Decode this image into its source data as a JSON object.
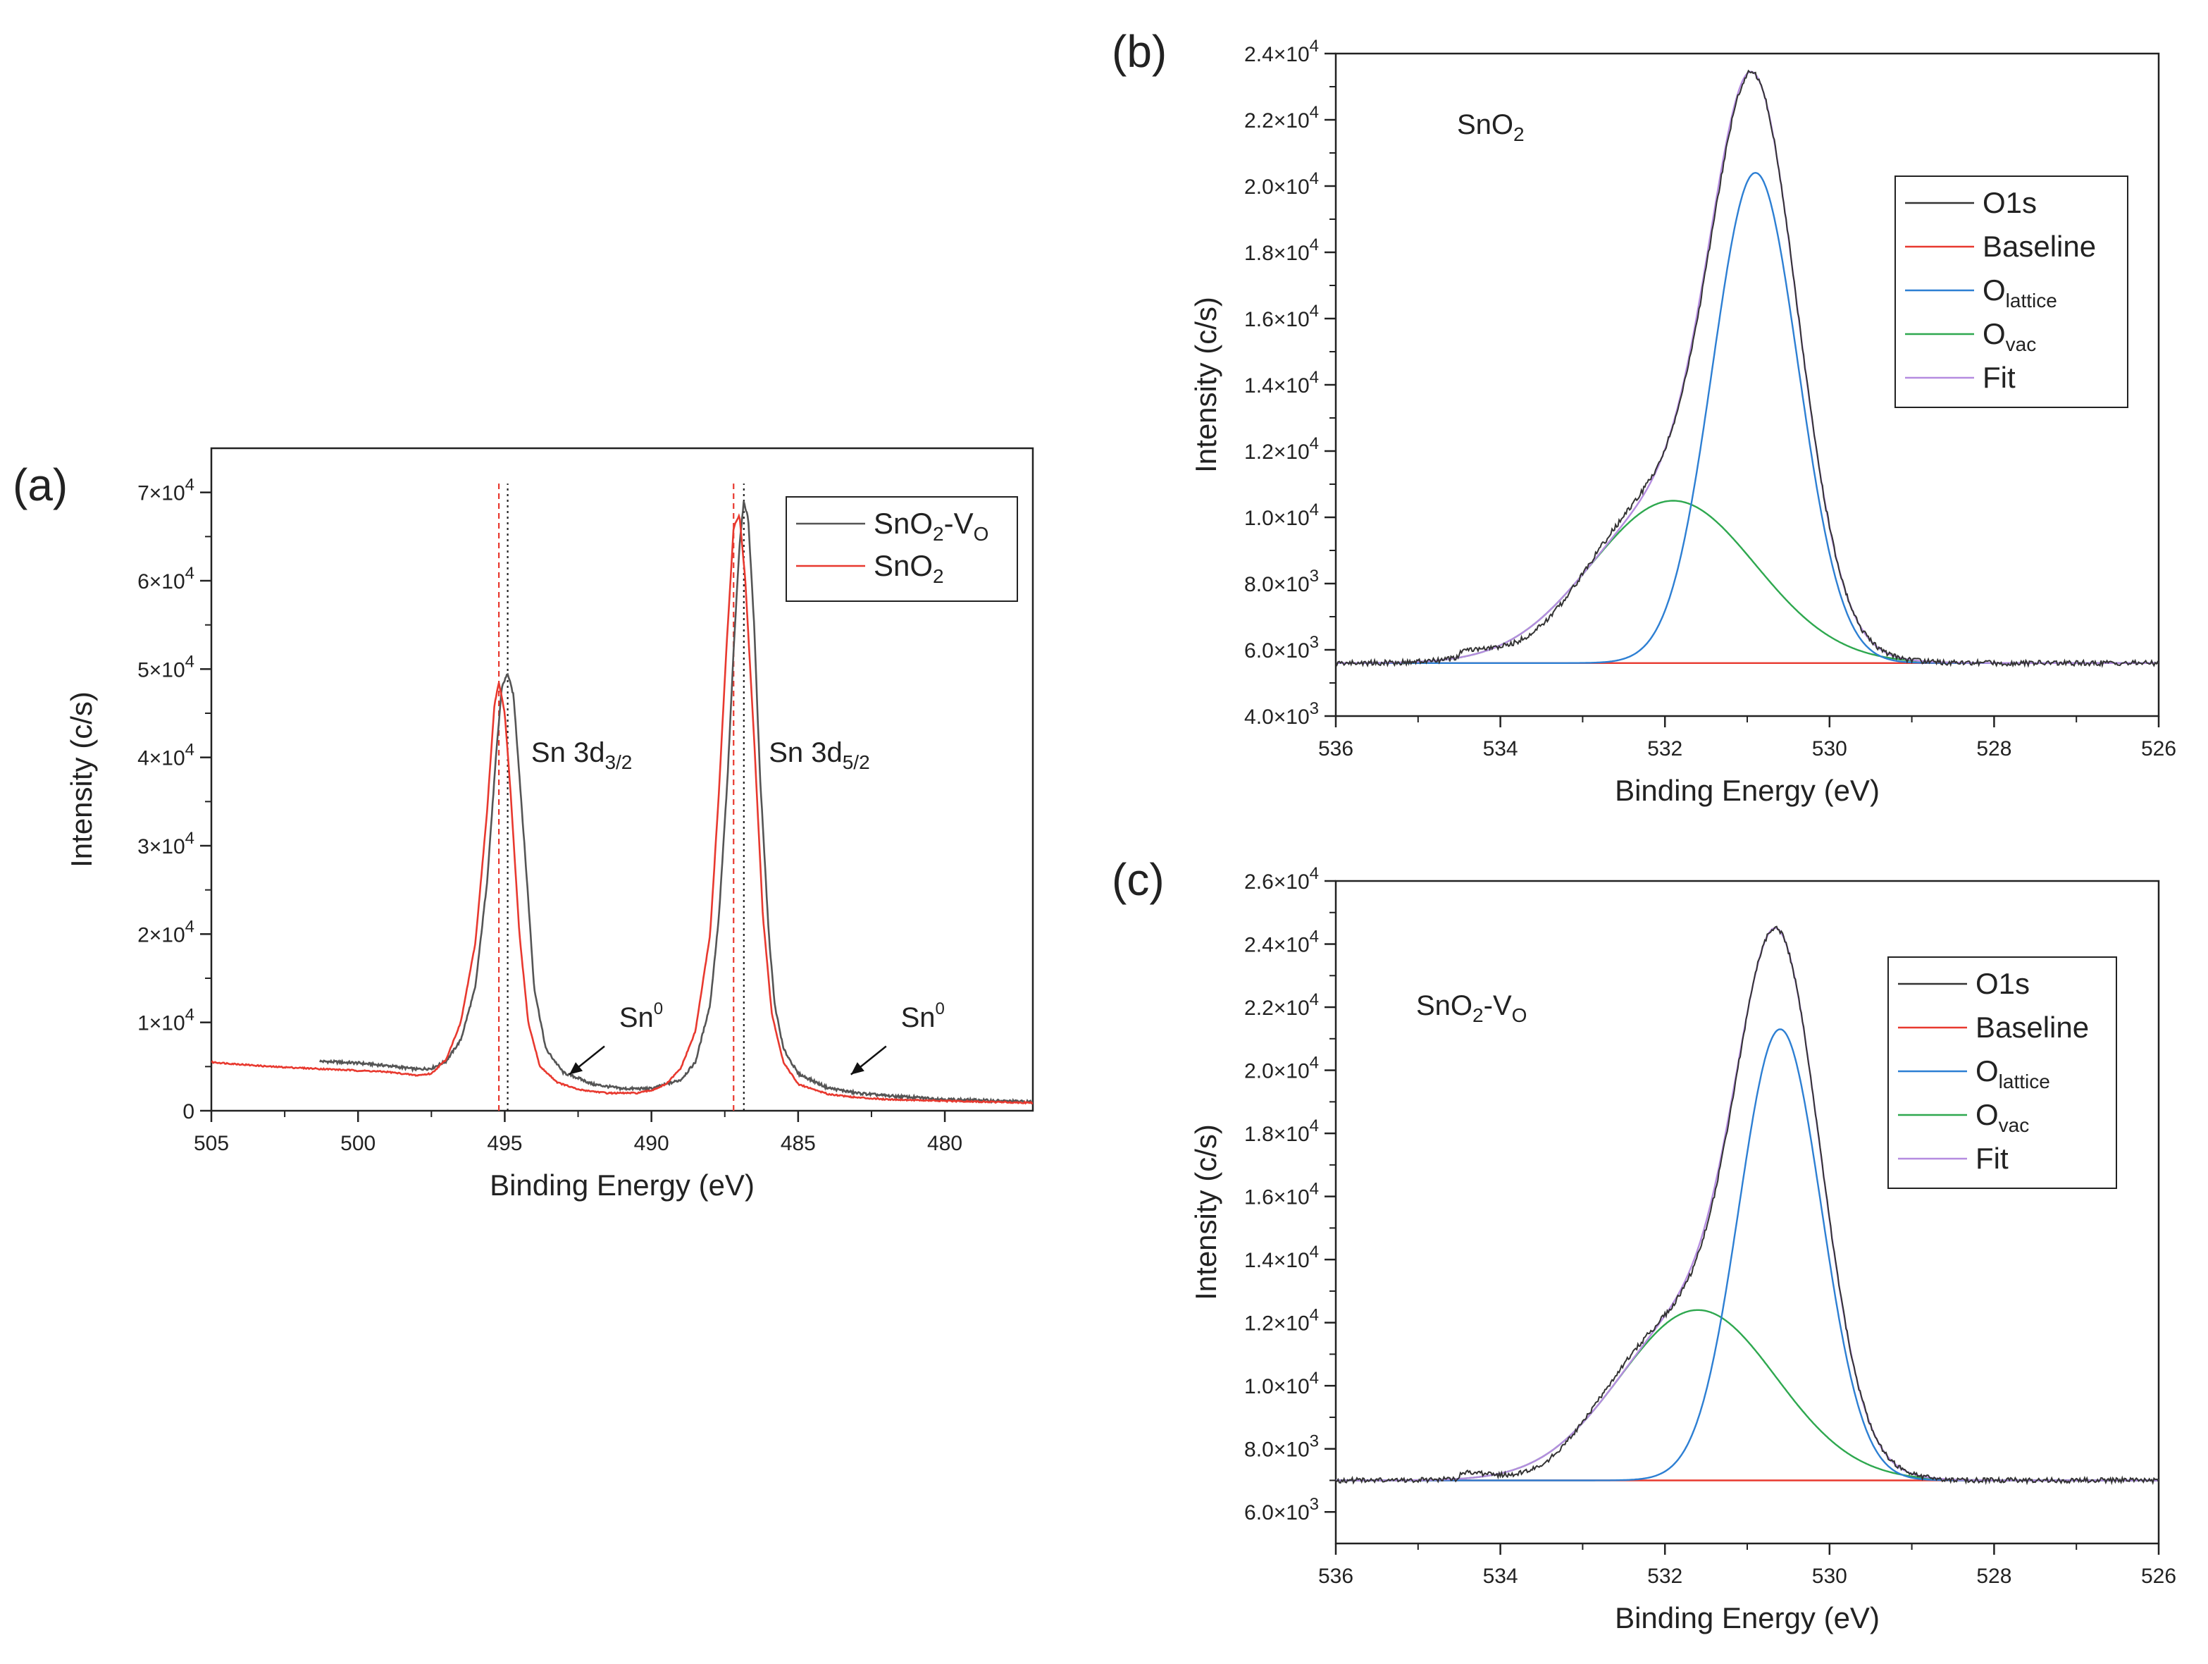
{
  "chart_data": [
    {
      "type": "line",
      "panel_label": "(a)",
      "xlabel": "Binding Energy (eV)",
      "ylabel": "Intensity (c/s)",
      "xlim": [
        505,
        477
      ],
      "ylim": [
        0,
        75000
      ],
      "xticks": [
        505,
        500,
        495,
        490,
        485,
        480
      ],
      "yticks": [
        0,
        10000,
        20000,
        30000,
        40000,
        50000,
        60000,
        70000
      ],
      "ytick_labels": [
        {
          "mantissa": "0",
          "exp": ""
        },
        {
          "mantissa": "1×10",
          "exp": "4"
        },
        {
          "mantissa": "2×10",
          "exp": "4"
        },
        {
          "mantissa": "3×10",
          "exp": "4"
        },
        {
          "mantissa": "4×10",
          "exp": "4"
        },
        {
          "mantissa": "5×10",
          "exp": "4"
        },
        {
          "mantissa": "6×10",
          "exp": "4"
        },
        {
          "mantissa": "7×10",
          "exp": "4"
        }
      ],
      "series": [
        {
          "name": "SnO2-VO",
          "legend_base": "SnO",
          "legend_sub": "2",
          "legend_mid": "-V",
          "legend_sub2": "O",
          "color": "#555555",
          "x": [
            501.3,
            500.0,
            499.0,
            498.0,
            497.5,
            497.0,
            496.5,
            496.0,
            495.6,
            495.3,
            495.1,
            494.9,
            494.7,
            494.5,
            494.2,
            494.0,
            493.6,
            493.0,
            492.5,
            492.0,
            491.0,
            490.0,
            489.0,
            488.5,
            488.0,
            487.7,
            487.4,
            487.2,
            487.0,
            486.85,
            486.7,
            486.5,
            486.3,
            486.0,
            485.8,
            485.5,
            485.0,
            484.0,
            483.0,
            482.0,
            480.0,
            477.0
          ],
          "y": [
            5600,
            5400,
            5100,
            4700,
            4800,
            5600,
            8000,
            14000,
            26000,
            40000,
            48000,
            49500,
            47000,
            38000,
            24000,
            14000,
            7000,
            4300,
            3700,
            3000,
            2500,
            2500,
            3500,
            5500,
            12000,
            22000,
            38000,
            52000,
            64000,
            69000,
            67000,
            55000,
            38000,
            20000,
            12000,
            7000,
            4200,
            2600,
            2000,
            1700,
            1300,
            1000
          ]
        },
        {
          "name": "SnO2",
          "legend_base": "SnO",
          "legend_sub": "2",
          "color": "#e8392f",
          "x": [
            505.0,
            503.0,
            501.0,
            499.0,
            498.0,
            497.5,
            497.0,
            496.5,
            496.0,
            495.6,
            495.35,
            495.2,
            495.0,
            494.8,
            494.5,
            494.2,
            493.8,
            493.2,
            492.5,
            491.5,
            490.5,
            490.0,
            489.5,
            489.0,
            488.5,
            488.0,
            487.7,
            487.45,
            487.2,
            487.0,
            486.8,
            486.5,
            486.2,
            485.9,
            485.5,
            485.0,
            484.0,
            483.0,
            482.0,
            480.0,
            477.0
          ],
          "y": [
            5500,
            5000,
            4700,
            4400,
            4000,
            4200,
            5800,
            10000,
            19000,
            34000,
            46000,
            48500,
            45000,
            36000,
            20000,
            10000,
            5000,
            3200,
            2400,
            2000,
            2000,
            2300,
            3000,
            4800,
            9000,
            20000,
            36000,
            52000,
            66000,
            67500,
            60000,
            42000,
            22000,
            11000,
            5500,
            3000,
            1900,
            1500,
            1300,
            1100,
            900
          ]
        }
      ],
      "reference_lines": [
        {
          "x": 495.2,
          "color": "#e8392f",
          "style": "dashed"
        },
        {
          "x": 494.9,
          "color": "#222222",
          "style": "dotted"
        },
        {
          "x": 487.2,
          "color": "#e8392f",
          "style": "dashed"
        },
        {
          "x": 486.85,
          "color": "#222222",
          "style": "dotted"
        }
      ],
      "annotations": [
        {
          "base": "Sn 3d",
          "sub": "3/2",
          "x": 494.1,
          "y": 39500
        },
        {
          "base": "Sn 3d",
          "sub": "5/2",
          "x": 486.0,
          "y": 39500
        },
        {
          "base": "Sn",
          "sup": "0",
          "x": 491.1,
          "y": 9500,
          "arrow_from": [
            491.6,
            7300
          ],
          "arrow_to": [
            492.8,
            4100
          ]
        },
        {
          "base": "Sn",
          "sup": "0",
          "x": 481.5,
          "y": 9500,
          "arrow_from": [
            482.0,
            7300
          ],
          "arrow_to": [
            483.2,
            4100
          ]
        }
      ],
      "legend": {
        "position": "top-right"
      }
    },
    {
      "type": "line",
      "panel_label": "(b)",
      "sample_label": {
        "base": "SnO",
        "sub": "2"
      },
      "xlabel": "Binding Energy (eV)",
      "ylabel": "Intensity (c/s)",
      "xlim": [
        536,
        526
      ],
      "ylim": [
        4000,
        24000
      ],
      "xticks": [
        536,
        534,
        532,
        530,
        528,
        526
      ],
      "yticks": [
        4000,
        6000,
        8000,
        10000,
        12000,
        14000,
        16000,
        18000,
        20000,
        22000,
        24000
      ],
      "ytick_labels": [
        {
          "mantissa": "4.0×10",
          "exp": "3"
        },
        {
          "mantissa": "6.0×10",
          "exp": "3"
        },
        {
          "mantissa": "8.0×10",
          "exp": "3"
        },
        {
          "mantissa": "1.0×10",
          "exp": "4"
        },
        {
          "mantissa": "1.2×10",
          "exp": "4"
        },
        {
          "mantissa": "1.4×10",
          "exp": "4"
        },
        {
          "mantissa": "1.6×10",
          "exp": "4"
        },
        {
          "mantissa": "1.8×10",
          "exp": "4"
        },
        {
          "mantissa": "2.0×10",
          "exp": "4"
        },
        {
          "mantissa": "2.2×10",
          "exp": "4"
        },
        {
          "mantissa": "2.4×10",
          "exp": "4"
        }
      ],
      "components": {
        "baseline": 5600,
        "lattice": {
          "center": 530.9,
          "amplitude": 14800,
          "sigma": 0.52
        },
        "vacancy": {
          "center": 531.9,
          "amplitude": 4900,
          "sigma": 1.0
        }
      },
      "series": [
        {
          "name": "O1s",
          "legend_base": "O1s",
          "color": "#333333"
        },
        {
          "name": "Baseline",
          "legend_base": "Baseline",
          "color": "#e8392f"
        },
        {
          "name": "Olattice",
          "legend_base": "O",
          "legend_sub": "lattice",
          "color": "#2d7fd3"
        },
        {
          "name": "Ovac",
          "legend_base": "O",
          "legend_sub": "vac",
          "color": "#2ea84f"
        },
        {
          "name": "Fit",
          "legend_base": "Fit",
          "color": "#b58ce0"
        }
      ],
      "legend": {
        "position": "top-right"
      }
    },
    {
      "type": "line",
      "panel_label": "(c)",
      "sample_label": {
        "base": "SnO",
        "sub": "2",
        "mid": "-V",
        "sub2": "O"
      },
      "xlabel": "Binding Energy (eV)",
      "ylabel": "Intensity (c/s)",
      "xlim": [
        536,
        526
      ],
      "ylim": [
        5000,
        26000
      ],
      "xticks": [
        536,
        534,
        532,
        530,
        528,
        526
      ],
      "yticks": [
        6000,
        8000,
        10000,
        12000,
        14000,
        16000,
        18000,
        20000,
        22000,
        24000,
        26000
      ],
      "ytick_labels": [
        {
          "mantissa": "6.0×10",
          "exp": "3"
        },
        {
          "mantissa": "8.0×10",
          "exp": "3"
        },
        {
          "mantissa": "1.0×10",
          "exp": "4"
        },
        {
          "mantissa": "1.2×10",
          "exp": "4"
        },
        {
          "mantissa": "1.4×10",
          "exp": "4"
        },
        {
          "mantissa": "1.6×10",
          "exp": "4"
        },
        {
          "mantissa": "1.8×10",
          "exp": "4"
        },
        {
          "mantissa": "2.0×10",
          "exp": "4"
        },
        {
          "mantissa": "2.2×10",
          "exp": "4"
        },
        {
          "mantissa": "2.4×10",
          "exp": "4"
        },
        {
          "mantissa": "2.6×10",
          "exp": "4"
        }
      ],
      "components": {
        "baseline": 7000,
        "lattice": {
          "center": 530.6,
          "amplitude": 14300,
          "sigma": 0.5
        },
        "vacancy": {
          "center": 531.6,
          "amplitude": 5400,
          "sigma": 0.95
        }
      },
      "series": [
        {
          "name": "O1s",
          "legend_base": "O1s",
          "color": "#333333"
        },
        {
          "name": "Baseline",
          "legend_base": "Baseline",
          "color": "#e8392f"
        },
        {
          "name": "Olattice",
          "legend_base": "O",
          "legend_sub": "lattice",
          "color": "#2d7fd3"
        },
        {
          "name": "Ovac",
          "legend_base": "O",
          "legend_sub": "vac",
          "color": "#2ea84f"
        },
        {
          "name": "Fit",
          "legend_base": "Fit",
          "color": "#b58ce0"
        }
      ],
      "legend": {
        "position": "top-right"
      }
    }
  ]
}
